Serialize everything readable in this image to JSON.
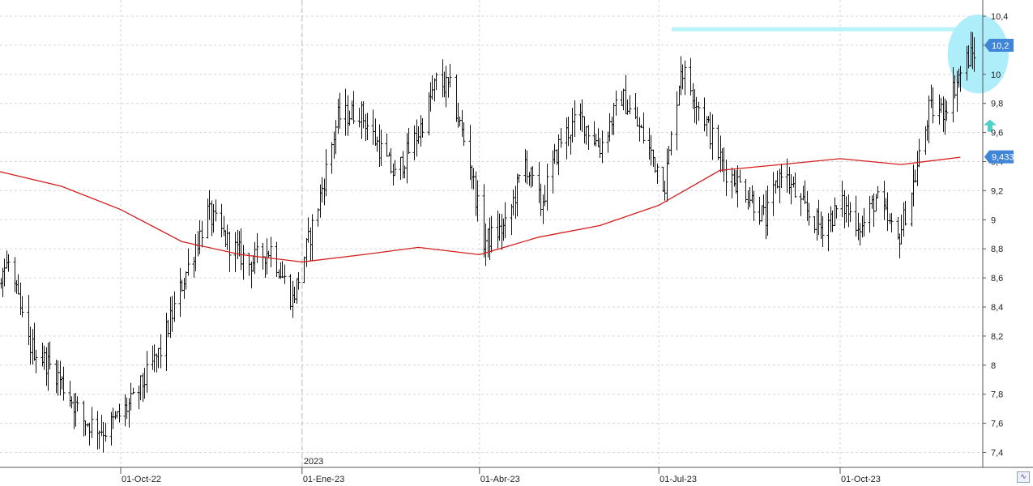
{
  "chart_data": {
    "type": "bar",
    "style": "ohlc-bars",
    "x_range": [
      "2022-07-01",
      "2023-11-30"
    ],
    "ylim": [
      7.3,
      10.5
    ],
    "y_ticks": [
      "10,4",
      "10,2",
      "10",
      "9,8",
      "9,6",
      "9,4",
      "9,2",
      "9",
      "8,8",
      "8,6",
      "8,4",
      "8,2",
      "8",
      "7,8",
      "7,6",
      "7,4"
    ],
    "y_tick_values": [
      10.4,
      10.2,
      10.0,
      9.8,
      9.6,
      9.4,
      9.2,
      9.0,
      8.8,
      8.6,
      8.4,
      8.2,
      8.0,
      7.8,
      7.6,
      7.4
    ],
    "x_ticks": [
      {
        "label": "01-Oct-22",
        "date": "2022-10-01"
      },
      {
        "label": "01-Ene-23",
        "date": "2023-01-01"
      },
      {
        "label": "01-Abr-23",
        "date": "2023-04-01"
      },
      {
        "label": "01-Jul-23",
        "date": "2023-07-01"
      },
      {
        "label": "01-Oct-23",
        "date": "2023-10-01"
      }
    ],
    "year_marker": {
      "label": "2023",
      "date": "2023-01-01"
    },
    "grid": true,
    "price_anchors": [
      [
        "2022-07-01",
        8.55
      ],
      [
        "2022-07-12",
        9.15
      ],
      [
        "2022-07-22",
        8.5
      ],
      [
        "2022-08-05",
        8.7
      ],
      [
        "2022-08-15",
        8.15
      ],
      [
        "2022-08-29",
        7.95
      ],
      [
        "2022-09-12",
        7.62
      ],
      [
        "2022-09-23",
        7.55
      ],
      [
        "2022-10-07",
        7.75
      ],
      [
        "2022-10-21",
        8.1
      ],
      [
        "2022-11-02",
        8.6
      ],
      [
        "2022-11-14",
        9.05
      ],
      [
        "2022-11-24",
        8.85
      ],
      [
        "2022-12-05",
        8.7
      ],
      [
        "2022-12-16",
        8.8
      ],
      [
        "2022-12-27",
        8.45
      ],
      [
        "2023-01-09",
        9.1
      ],
      [
        "2023-01-19",
        9.7
      ],
      [
        "2023-01-30",
        9.75
      ],
      [
        "2023-02-07",
        9.55
      ],
      [
        "2023-02-17",
        9.3
      ],
      [
        "2023-03-01",
        9.6
      ],
      [
        "2023-03-10",
        9.95
      ],
      [
        "2023-03-17",
        9.9
      ],
      [
        "2023-03-27",
        9.4
      ],
      [
        "2023-04-03",
        8.85
      ],
      [
        "2023-04-14",
        8.95
      ],
      [
        "2023-04-24",
        9.4
      ],
      [
        "2023-05-02",
        9.1
      ],
      [
        "2023-05-12",
        9.55
      ],
      [
        "2023-05-22",
        9.7
      ],
      [
        "2023-06-01",
        9.5
      ],
      [
        "2023-06-12",
        9.85
      ],
      [
        "2023-06-22",
        9.6
      ],
      [
        "2023-07-04",
        9.25
      ],
      [
        "2023-07-12",
        10.05
      ],
      [
        "2023-07-24",
        9.7
      ],
      [
        "2023-08-03",
        9.35
      ],
      [
        "2023-08-14",
        9.2
      ],
      [
        "2023-08-24",
        9.0
      ],
      [
        "2023-09-01",
        9.35
      ],
      [
        "2023-09-11",
        9.1
      ],
      [
        "2023-09-21",
        8.95
      ],
      [
        "2023-10-02",
        9.1
      ],
      [
        "2023-10-12",
        8.95
      ],
      [
        "2023-10-19",
        9.15
      ],
      [
        "2023-10-30",
        8.85
      ],
      [
        "2023-11-08",
        9.3
      ],
      [
        "2023-11-15",
        9.75
      ],
      [
        "2023-11-22",
        9.75
      ],
      [
        "2023-12-04",
        10.1
      ],
      [
        "2023-12-14",
        10.22
      ],
      [
        "2023-12-22",
        10.2
      ]
    ],
    "moving_average": {
      "color": "#d41c1c",
      "points": [
        [
          "2022-07-01",
          9.47
        ],
        [
          "2022-08-01",
          9.33
        ],
        [
          "2022-09-01",
          9.23
        ],
        [
          "2022-10-01",
          9.07
        ],
        [
          "2022-11-01",
          8.85
        ],
        [
          "2022-12-01",
          8.76
        ],
        [
          "2023-01-01",
          8.71
        ],
        [
          "2023-02-01",
          8.76
        ],
        [
          "2023-03-01",
          8.81
        ],
        [
          "2023-04-01",
          8.76
        ],
        [
          "2023-05-01",
          8.88
        ],
        [
          "2023-06-01",
          8.96
        ],
        [
          "2023-07-01",
          9.1
        ],
        [
          "2023-08-01",
          9.34
        ],
        [
          "2023-09-01",
          9.38
        ],
        [
          "2023-10-01",
          9.42
        ],
        [
          "2023-11-01",
          9.38
        ],
        [
          "2023-12-01",
          9.43
        ]
      ]
    },
    "resistance_line": {
      "value": 10.31,
      "from": "2023-07-01",
      "to": "2023-12-23",
      "color": "#b8f3f8"
    },
    "highlight_ellipse": {
      "from": "2023-11-27",
      "to": "2023-12-23",
      "y_low": 9.88,
      "y_high": 10.4,
      "color": "#aeeefb"
    },
    "arrow": {
      "date": "2023-12-16",
      "value": 9.65,
      "direction": "up",
      "color": "#4fd1c5"
    },
    "last_price_badge": {
      "label": "10,2",
      "value": 10.2,
      "color": "#3f86d8"
    },
    "ma_value_badge": {
      "label": "9,433",
      "value": 9.433,
      "color": "#3f86d8"
    }
  },
  "controls": {
    "zoom_icon": "zigzag-icon"
  }
}
